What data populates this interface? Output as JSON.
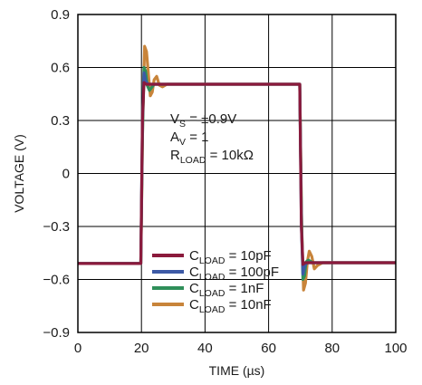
{
  "chart_data": {
    "type": "line",
    "xlabel": "TIME (µs)",
    "ylabel": "VOLTAGE (V)",
    "xlim": [
      0,
      100
    ],
    "ylim": [
      -0.9,
      0.9
    ],
    "x_ticks": [
      0,
      20,
      40,
      60,
      80,
      100
    ],
    "x_tick_labels": [
      "0",
      "20",
      "40",
      "60",
      "80",
      "100"
    ],
    "y_ticks": [
      -0.9,
      -0.6,
      -0.3,
      0,
      0.3,
      0.6,
      0.9
    ],
    "y_tick_labels": [
      "−0.9",
      "−0.6",
      "−0.3",
      "0",
      "0.3",
      "0.6",
      "0.9"
    ],
    "grid": true,
    "legend_position": "bottom-center",
    "annotations": [
      {
        "main": "V",
        "sub": "S",
        "rest": " = ±0.9V"
      },
      {
        "main": "A",
        "sub": "V",
        "rest": " = 1"
      },
      {
        "main": "R",
        "sub": "LOAD",
        "rest": " = 10kΩ"
      }
    ],
    "series": [
      {
        "name": "CLOAD = 10nF",
        "legend": {
          "main": "C",
          "sub": "LOAD",
          "rest": " = 10nF"
        },
        "color": "#c8843a",
        "x": [
          0,
          19.8,
          20.4,
          21.0,
          21.6,
          22.2,
          22.8,
          23.4,
          24.0,
          24.8,
          25.6,
          26.6,
          28,
          69.8,
          70.4,
          71.0,
          71.6,
          72.2,
          72.8,
          73.6,
          74.4,
          75.4,
          77,
          100
        ],
        "y": [
          -0.51,
          -0.51,
          0.3,
          0.72,
          0.69,
          0.56,
          0.44,
          0.46,
          0.53,
          0.55,
          0.5,
          0.49,
          0.505,
          0.505,
          -0.3,
          -0.66,
          -0.62,
          -0.5,
          -0.44,
          -0.47,
          -0.54,
          -0.52,
          -0.505,
          -0.505
        ]
      },
      {
        "name": "CLOAD = 1nF",
        "legend": {
          "main": "C",
          "sub": "LOAD",
          "rest": " = 1nF"
        },
        "color": "#2f8f5a",
        "x": [
          0,
          19.8,
          20.3,
          20.8,
          21.3,
          21.8,
          22.5,
          24,
          69.8,
          70.3,
          70.8,
          71.3,
          71.8,
          72.5,
          74,
          100
        ],
        "y": [
          -0.51,
          -0.51,
          0.2,
          0.6,
          0.58,
          0.5,
          0.47,
          0.505,
          0.505,
          -0.2,
          -0.6,
          -0.58,
          -0.5,
          -0.49,
          -0.505,
          -0.505
        ]
      },
      {
        "name": "CLOAD = 100pF",
        "legend": {
          "main": "C",
          "sub": "LOAD",
          "rest": " = 100pF"
        },
        "color": "#3d5aa6",
        "x": [
          0,
          19.8,
          20.3,
          20.8,
          21.4,
          22.2,
          69.8,
          70.3,
          70.8,
          71.4,
          72.2,
          100
        ],
        "y": [
          -0.51,
          -0.51,
          0.3,
          0.57,
          0.52,
          0.505,
          0.505,
          -0.3,
          -0.57,
          -0.52,
          -0.505,
          -0.505
        ]
      },
      {
        "name": "CLOAD = 10pF",
        "legend": {
          "main": "C",
          "sub": "LOAD",
          "rest": " = 10pF"
        },
        "color": "#8b1a3c",
        "x": [
          0,
          19.8,
          20.3,
          20.8,
          21.5,
          69.8,
          70.3,
          70.8,
          71.5,
          100
        ],
        "y": [
          -0.51,
          -0.51,
          0.3,
          0.515,
          0.505,
          0.505,
          -0.3,
          -0.515,
          -0.505,
          -0.505
        ]
      }
    ]
  }
}
